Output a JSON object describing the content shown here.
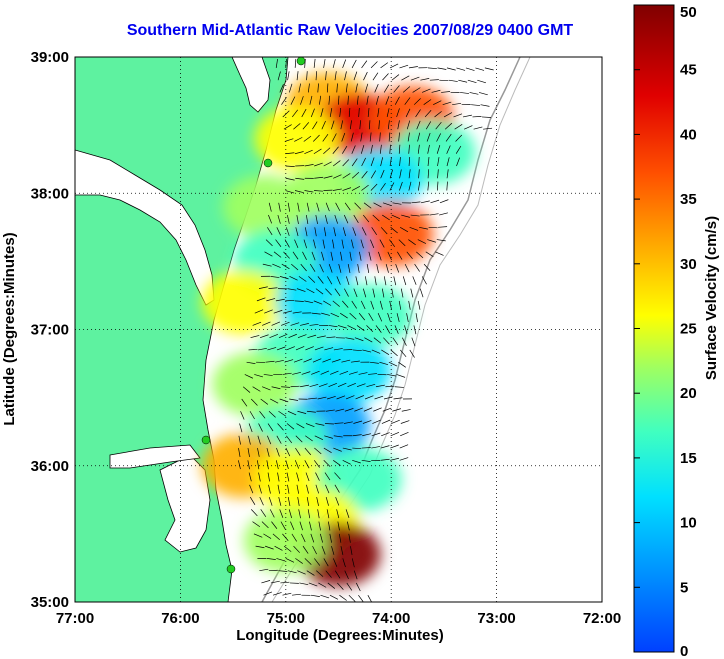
{
  "chart_data": {
    "type": "heatmap",
    "title": "Southern Mid-Atlantic Raw Velocities 2007/08/29 0400 GMT",
    "xlabel": "Longitude (Degrees:Minutes)",
    "ylabel": "Latitude (Degrees:Minutes)",
    "x_ticks": [
      "77:00",
      "76:00",
      "75:00",
      "74:00",
      "73:00",
      "72:00"
    ],
    "x_tick_values": [
      -77,
      -76,
      -75,
      -74,
      -73,
      -72
    ],
    "y_ticks": [
      "39:00",
      "38:00",
      "37:00",
      "36:00",
      "35:00"
    ],
    "y_tick_values": [
      39,
      38,
      37,
      36,
      35
    ],
    "xlim": [
      -77,
      -72
    ],
    "ylim": [
      35,
      39
    ],
    "grid": true,
    "colorbar": {
      "label": "Surface Velocity (cm/s)",
      "ticks": [
        "50",
        "45",
        "40",
        "35",
        "30",
        "25",
        "20",
        "15",
        "10",
        "5",
        "0"
      ],
      "tick_values": [
        50,
        45,
        40,
        35,
        30,
        25,
        20,
        15,
        10,
        5,
        0
      ],
      "range": [
        0,
        50
      ],
      "colors": [
        "#0040ff",
        "#00a0ff",
        "#00e0ff",
        "#40ffc0",
        "#a0ff60",
        "#ffff00",
        "#ffb000",
        "#ff5000",
        "#e00000",
        "#800000"
      ]
    },
    "colors": {
      "land": "#5ef2a0",
      "coast": "#000000",
      "shelf_contour": "#999999",
      "station": "#22cc22"
    },
    "velocity_regions": [
      {
        "lon": -74.6,
        "lat": 38.65,
        "speed": 36
      },
      {
        "lon": -74.3,
        "lat": 38.5,
        "speed": 42
      },
      {
        "lon": -73.8,
        "lat": 38.55,
        "speed": 38
      },
      {
        "lon": -74.9,
        "lat": 38.4,
        "speed": 26
      },
      {
        "lon": -73.6,
        "lat": 38.3,
        "speed": 15
      },
      {
        "lon": -74.1,
        "lat": 38.1,
        "speed": 10
      },
      {
        "lon": -74.6,
        "lat": 38.0,
        "speed": 22
      },
      {
        "lon": -75.2,
        "lat": 37.9,
        "speed": 20
      },
      {
        "lon": -74.0,
        "lat": 37.7,
        "speed": 38
      },
      {
        "lon": -74.6,
        "lat": 37.6,
        "speed": 8
      },
      {
        "lon": -75.1,
        "lat": 37.5,
        "speed": 14
      },
      {
        "lon": -75.4,
        "lat": 37.2,
        "speed": 28
      },
      {
        "lon": -74.7,
        "lat": 37.2,
        "speed": 12
      },
      {
        "lon": -74.2,
        "lat": 37.1,
        "speed": 18
      },
      {
        "lon": -74.9,
        "lat": 36.8,
        "speed": 16
      },
      {
        "lon": -74.4,
        "lat": 36.7,
        "speed": 10
      },
      {
        "lon": -75.3,
        "lat": 36.6,
        "speed": 22
      },
      {
        "lon": -74.6,
        "lat": 36.3,
        "speed": 6
      },
      {
        "lon": -75.0,
        "lat": 36.2,
        "speed": 14
      },
      {
        "lon": -75.4,
        "lat": 36.0,
        "speed": 34
      },
      {
        "lon": -74.9,
        "lat": 35.9,
        "speed": 26
      },
      {
        "lon": -74.3,
        "lat": 35.9,
        "speed": 16
      },
      {
        "lon": -74.7,
        "lat": 35.6,
        "speed": 30
      },
      {
        "lon": -74.5,
        "lat": 35.35,
        "speed": 50
      },
      {
        "lon": -75.0,
        "lat": 35.45,
        "speed": 20
      }
    ]
  }
}
